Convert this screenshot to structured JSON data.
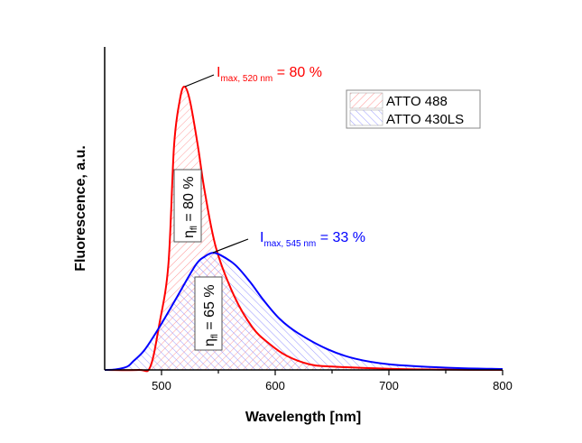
{
  "chart_data": {
    "type": "area",
    "xlabel": "Wavelength [nm]",
    "ylabel": "Fluorescence, a.u.",
    "xlim": [
      450,
      800
    ],
    "ylim": [
      0,
      1.14
    ],
    "xticks": [
      500,
      600,
      700,
      800
    ],
    "grid": false,
    "legend_position": "top-right",
    "series": [
      {
        "name": "ATTO 488",
        "color": "#ff0000",
        "hatch": "diagonal-down",
        "x": [
          450,
          480,
          490,
          498,
          506,
          511,
          516,
          520,
          525,
          532,
          538,
          548,
          564,
          580,
          594,
          610,
          630,
          650,
          700,
          750,
          800
        ],
        "y": [
          0,
          0,
          0.01,
          0.16,
          0.37,
          0.79,
          0.95,
          1.0,
          0.95,
          0.79,
          0.63,
          0.43,
          0.26,
          0.15,
          0.095,
          0.05,
          0.02,
          0.012,
          0.004,
          0.001,
          0
        ]
      },
      {
        "name": "ATTO 430LS",
        "color": "#0000ff",
        "hatch": "diagonal-up",
        "x": [
          450,
          460,
          470,
          475,
          485,
          498,
          514,
          530,
          538,
          545,
          552,
          565,
          578,
          590,
          604,
          620,
          646,
          670,
          700,
          750,
          800
        ],
        "y": [
          0,
          0.002,
          0.012,
          0.03,
          0.07,
          0.15,
          0.26,
          0.37,
          0.4,
          0.413,
          0.405,
          0.37,
          0.31,
          0.245,
          0.18,
          0.13,
          0.073,
          0.04,
          0.02,
          0.008,
          0.003
        ]
      }
    ],
    "annotations": [
      {
        "main": "I",
        "sub": "max, 520 nm",
        "tail": " = 80 %",
        "color": "#ff0000"
      },
      {
        "main": "I",
        "sub": "max, 545 nm",
        "tail": " = 33 %",
        "color": "#0000ff"
      },
      {
        "main": "η",
        "sub": "fl",
        "tail": " = 80 %"
      },
      {
        "main": "η",
        "sub": "fl",
        "tail": " = 65 %"
      }
    ]
  }
}
